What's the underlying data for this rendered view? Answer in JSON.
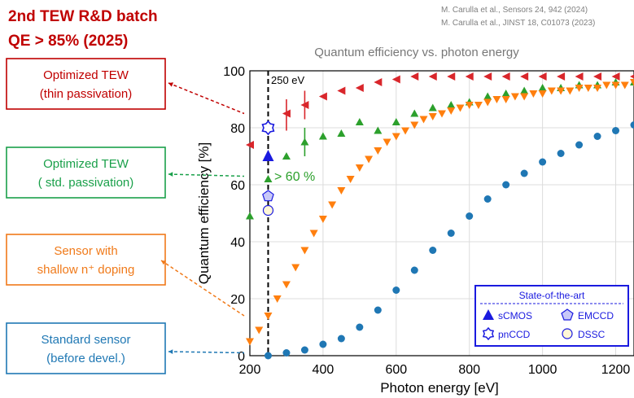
{
  "header": {
    "batch_label": "2nd TEW R&D batch",
    "qe_label": "QE > 85% (2025)"
  },
  "references": {
    "ref1": "M. Carulla et al., Sensors 24, 942 (2024)",
    "ref2": "M. Carulla et al., JINST 18, C01073 (2023)"
  },
  "callouts": [
    {
      "line1": "Optimized TEW",
      "line2": "(thin passivation)",
      "color": "#c00000"
    },
    {
      "line1": "Optimized TEW",
      "line2": "( std. passivation)",
      "color": "#1aa04a"
    },
    {
      "line1": "Sensor with",
      "line2": "shallow n⁺ doping",
      "color": "#f07a1a"
    },
    {
      "line1": "Standard sensor",
      "line2": "(before devel.)",
      "color": "#1f78b4"
    }
  ],
  "annotations": {
    "energy_marker": "250 eV",
    "threshold": "> 60 %"
  },
  "legend_box": {
    "title": "State-of-the-art",
    "items": [
      "sCMOS",
      "EMCCD",
      "pnCCD",
      "DSSC"
    ]
  },
  "colors": {
    "red": "#d9262b",
    "green": "#2ca02c",
    "orange": "#ff7f0e",
    "blue": "#1f77b4",
    "sota": "#1a1adf"
  },
  "chart_data": {
    "type": "scatter",
    "title": "Quantum efficiency vs. photon energy",
    "xlabel": "Photon energy [eV]",
    "ylabel": "Quantum efficiency [%]",
    "xlim": [
      200,
      1250
    ],
    "ylim": [
      0,
      100
    ],
    "xticks": [
      200,
      400,
      600,
      800,
      1000,
      1200
    ],
    "yticks": [
      0,
      20,
      40,
      60,
      80,
      100
    ],
    "grid": true,
    "vline_x": 250,
    "series": [
      {
        "marker": "triangle-left",
        "color": "#d9262b",
        "x": [
          200,
          300,
          350,
          400,
          450,
          500,
          550,
          600,
          650,
          700,
          750,
          800,
          850,
          900,
          950,
          1000,
          1050,
          1100,
          1150,
          1200,
          1250
        ],
        "y": [
          74,
          85,
          88,
          91,
          93,
          94,
          96,
          97,
          98,
          98,
          98,
          98,
          98,
          98,
          98,
          98,
          98,
          98,
          98,
          98,
          98
        ]
      },
      {
        "marker": "triangle-up",
        "color": "#2ca02c",
        "x": [
          200,
          250,
          300,
          350,
          400,
          450,
          500,
          550,
          600,
          650,
          700,
          750,
          800,
          850,
          900,
          950,
          1000,
          1050,
          1100,
          1150,
          1200,
          1250
        ],
        "y": [
          49,
          62,
          70,
          75,
          77,
          78,
          82,
          79,
          82,
          85,
          87,
          88,
          89,
          91,
          92,
          93,
          94,
          94,
          95,
          95,
          96,
          96
        ]
      },
      {
        "marker": "triangle-down",
        "color": "#ff7f0e",
        "x": [
          200,
          225,
          250,
          275,
          300,
          325,
          350,
          375,
          400,
          425,
          450,
          475,
          500,
          525,
          550,
          575,
          600,
          625,
          650,
          675,
          700,
          725,
          750,
          775,
          800,
          825,
          850,
          875,
          900,
          925,
          950,
          975,
          1000,
          1025,
          1050,
          1075,
          1100,
          1125,
          1150,
          1175,
          1200,
          1225,
          1250
        ],
        "y": [
          5,
          9,
          14,
          20,
          25,
          31,
          37,
          43,
          48,
          53,
          58,
          62,
          66,
          69,
          72,
          75,
          77,
          79,
          81,
          83,
          84,
          85,
          86,
          87,
          88,
          88,
          89,
          90,
          90,
          91,
          91,
          92,
          92,
          93,
          93,
          93,
          94,
          94,
          94,
          95,
          95,
          95,
          96
        ]
      },
      {
        "marker": "circle",
        "color": "#1f77b4",
        "x": [
          250,
          300,
          350,
          400,
          450,
          500,
          550,
          600,
          650,
          700,
          750,
          800,
          850,
          900,
          950,
          1000,
          1050,
          1100,
          1150,
          1200,
          1250
        ],
        "y": [
          0,
          1,
          2,
          4,
          6,
          10,
          16,
          23,
          30,
          37,
          43,
          49,
          55,
          60,
          64,
          68,
          71,
          74,
          77,
          79,
          81
        ]
      }
    ],
    "error_bars": [
      {
        "x": 300,
        "y": 85,
        "low": 79,
        "high": 90,
        "color": "#d9262b"
      },
      {
        "x": 350,
        "y": 88,
        "low": 83,
        "high": 93,
        "color": "#d9262b"
      },
      {
        "x": 350,
        "y": 75,
        "low": 70,
        "high": 80,
        "color": "#2ca02c"
      }
    ],
    "state_of_the_art": [
      {
        "name": "sCMOS",
        "x": 250,
        "y": 70,
        "marker": "triangle-filled"
      },
      {
        "name": "EMCCD",
        "x": 250,
        "y": 56,
        "marker": "pentagon"
      },
      {
        "name": "pnCCD",
        "x": 250,
        "y": 80,
        "marker": "star-outline"
      },
      {
        "name": "DSSC",
        "x": 250,
        "y": 51,
        "marker": "circle-outline"
      }
    ]
  }
}
